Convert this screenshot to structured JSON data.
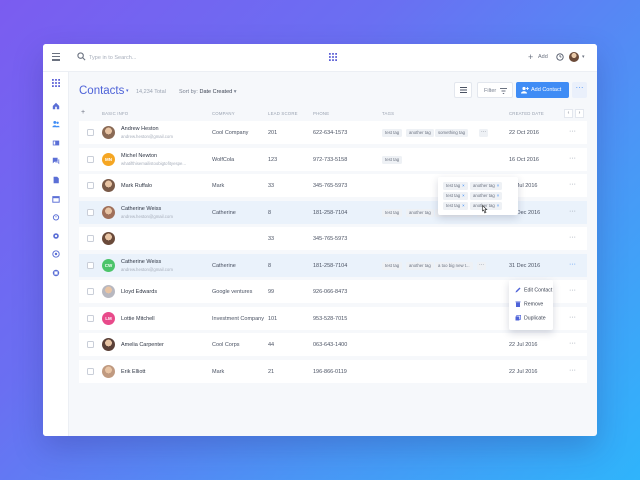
{
  "topbar": {
    "search_placeholder": "Type in to Search...",
    "add_label": "Add",
    "add_plus": "+",
    "caret": "▾"
  },
  "sidebar": {
    "items": [
      "apps-icon",
      "home-icon",
      "contacts-icon",
      "deals-icon",
      "chat-icon",
      "documents-icon",
      "calendar-icon",
      "alarm-icon",
      "settings-icon",
      "help-icon",
      "reports-icon"
    ]
  },
  "header": {
    "title": "Contacts",
    "caret": "▾",
    "total": "14,234 Total",
    "sort_prefix": "Sort by:",
    "sort_value": "Date Created",
    "filter_label": "Filter",
    "add_contact_label": "Add Contact",
    "more": "···"
  },
  "table": {
    "add_column": "+",
    "columns": [
      "BASIC INFO",
      "COMPANY",
      "LEAD SCORE",
      "PHONE",
      "TAGS",
      "CREATED DATE"
    ],
    "nav_prev": "‹",
    "nav_next": "›",
    "rows": [
      {
        "name": "Andrew Heston",
        "email": "andrew.heston@gmail.com",
        "avatar_type": "photo",
        "avatar_color": "#8a6a55",
        "initials": "",
        "company": "Cool Company",
        "score": "201",
        "phone": "622-634-1573",
        "tags": [
          "test tag",
          "another tag",
          "something tag"
        ],
        "tags_more": "···",
        "date": "22 Oct 2016",
        "selected": false
      },
      {
        "name": "Michel Newton",
        "email": "whatifthisemailistoobigtofityespe...",
        "avatar_type": "initials",
        "avatar_color": "#f5a623",
        "initials": "MN",
        "company": "WolfCola",
        "score": "123",
        "phone": "972-733-5158",
        "tags": [
          "test tag"
        ],
        "tags_more": "",
        "date": "16 Oct 2016",
        "selected": false
      },
      {
        "name": "Mark Ruffalo",
        "email": "",
        "avatar_type": "photo",
        "avatar_color": "#7a5a48",
        "initials": "",
        "company": "Mark",
        "score": "33",
        "phone": "345-765-5973",
        "tags": [],
        "tags_more": "",
        "date": "22 Jul 2016",
        "selected": false
      },
      {
        "name": "Catherine Weiss",
        "email": "andrew.heston@gmail.com",
        "avatar_type": "photo",
        "avatar_color": "#a0705a",
        "initials": "",
        "company": "Catherine",
        "score": "8",
        "phone": "181-258-7104",
        "tags": [
          "test tag",
          "another tag",
          "a too big new t..."
        ],
        "tags_more": "···",
        "date": "31 Dec 2016",
        "selected": true
      },
      {
        "name": "",
        "email": "",
        "avatar_type": "photo",
        "avatar_color": "#6a4a3a",
        "initials": "",
        "company": "",
        "score": "33",
        "phone": "345-765-5973",
        "tags": [],
        "tags_more": "",
        "date": "",
        "selected": false
      },
      {
        "name": "Catherine Weiss",
        "email": "andrew.heston@gmail.com",
        "avatar_type": "initials",
        "avatar_color": "#4cc46a",
        "initials": "CW",
        "company": "Catherine",
        "score": "8",
        "phone": "181-258-7104",
        "tags": [
          "test tag",
          "another tag",
          "a too big new t..."
        ],
        "tags_more": "···",
        "date": "31 Dec 2016",
        "selected": true
      },
      {
        "name": "Lloyd Edwards",
        "email": "",
        "avatar_type": "photo",
        "avatar_color": "#b8b8c0",
        "initials": "",
        "company": "Google ventures",
        "score": "99",
        "phone": "926-066-8473",
        "tags": [],
        "tags_more": "",
        "date": "",
        "selected": false
      },
      {
        "name": "Lottie Mitchell",
        "email": "",
        "avatar_type": "initials",
        "avatar_color": "#e84a8a",
        "initials": "LM",
        "company": "Investment Company",
        "score": "101",
        "phone": "953-528-7015",
        "tags": [],
        "tags_more": "",
        "date": "",
        "selected": false
      },
      {
        "name": "Amelia Carpenter",
        "email": "",
        "avatar_type": "photo",
        "avatar_color": "#5a4038",
        "initials": "",
        "company": "Cool Corps",
        "score": "44",
        "phone": "063-643-1400",
        "tags": [],
        "tags_more": "",
        "date": "22 Jul 2016",
        "selected": false
      },
      {
        "name": "Erik Elliott",
        "email": "",
        "avatar_type": "photo",
        "avatar_color": "#c09a80",
        "initials": "",
        "company": "Mark",
        "score": "21",
        "phone": "196-866-0119",
        "tags": [],
        "tags_more": "",
        "date": "22 Jul 2016",
        "selected": false
      }
    ],
    "row_more": "···"
  },
  "tag_popup": {
    "tags": [
      "test tag",
      "another tag",
      "test tag",
      "another tag",
      "test tag",
      "another tag"
    ],
    "remove_glyph": "×"
  },
  "context_menu": {
    "items": [
      {
        "label": "Edit Contact",
        "icon": "pencil-icon"
      },
      {
        "label": "Remove",
        "icon": "trash-icon"
      },
      {
        "label": "Duplicate",
        "icon": "duplicate-icon"
      }
    ]
  },
  "colors": {
    "accent": "#3f8cf5",
    "title": "#4e63d8",
    "selected_row": "#eaf2fb"
  }
}
